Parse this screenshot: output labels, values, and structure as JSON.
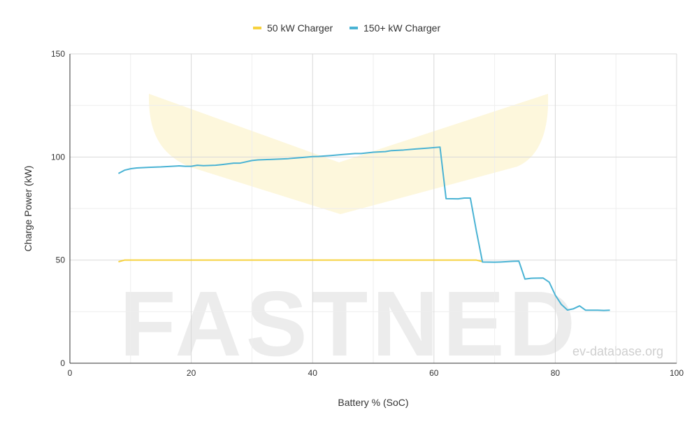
{
  "chart_data": {
    "type": "line",
    "watermark": "FASTNED",
    "source": "ev-database.org",
    "xlabel": "Battery % (SoC)",
    "ylabel": "Charge Power (kW)",
    "xlim": [
      0,
      100
    ],
    "xticks": [
      0,
      20,
      40,
      60,
      80,
      100
    ],
    "xminorticks": [
      10,
      30,
      50,
      70,
      90
    ],
    "ylim": [
      0,
      150
    ],
    "yticks": [
      0,
      50,
      100,
      150
    ],
    "yminorticks": [
      25,
      75,
      125
    ],
    "grid": true,
    "legend": "top",
    "series": [
      {
        "name": "50 kW Charger",
        "color": "#f7d23e",
        "x": [
          8,
          9,
          67,
          68
        ],
        "values": [
          49.2,
          50,
          50,
          49.3
        ]
      },
      {
        "name": "150+ kW Charger",
        "color": "#4ab3d4",
        "x": [
          8,
          9,
          10,
          11,
          13,
          15,
          18,
          19,
          20,
          21,
          22,
          24,
          25,
          27,
          28,
          30,
          31,
          33,
          36,
          38,
          40,
          41,
          43,
          45,
          47,
          48,
          50,
          52,
          53,
          55,
          57,
          59,
          61,
          62,
          64,
          65,
          66,
          67,
          68,
          70,
          71,
          73,
          74,
          75,
          76,
          78,
          79,
          80,
          81,
          82,
          83,
          84,
          85,
          87,
          88,
          89
        ],
        "values": [
          92,
          93.6,
          94.3,
          94.7,
          95,
          95.2,
          95.7,
          95.5,
          95.5,
          96,
          95.8,
          96,
          96.3,
          97,
          97,
          98.3,
          98.6,
          98.8,
          99.2,
          99.7,
          100.2,
          100.3,
          100.7,
          101.2,
          101.7,
          101.7,
          102.3,
          102.6,
          103.1,
          103.4,
          103.9,
          104.3,
          104.8,
          79.8,
          79.7,
          80.1,
          80.1,
          64,
          49.1,
          49,
          49.1,
          49.4,
          49.5,
          40.8,
          41.2,
          41.3,
          39.3,
          33,
          28.5,
          25.8,
          26.4,
          27.8,
          25.7,
          25.7,
          25.6,
          25.7
        ]
      }
    ]
  }
}
